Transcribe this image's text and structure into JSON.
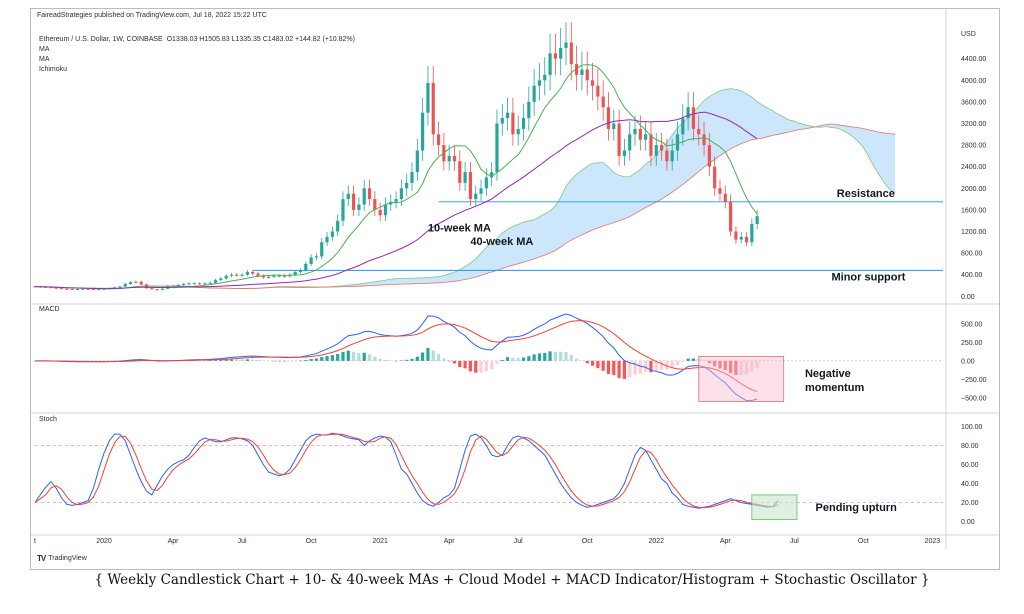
{
  "header": {
    "publisher": "FaireadStrategies published on TradingView.com, Jul 18, 2022 15:22 UTC",
    "symbol": "Ethereum / U.S. Dollar, 1W, COINBASE",
    "ohlc": "O1338.03  H1505.83  L1335.35  C1483.02  +144.82 (+10.82%)",
    "indicators": [
      "MA",
      "MA",
      "Ichimoku"
    ]
  },
  "brand": {
    "name": "TradingView",
    "logo": "TV"
  },
  "caption": "{ Weekly Candlestick Chart + 10- & 40-week MAs + Cloud Model + MACD Indicator/Histogram + Stochastic Oscillator }",
  "colors": {
    "up": "#26a69a",
    "down": "#ef5350",
    "ma10": "#4caf50",
    "ma40": "#9c27b0",
    "cloud": "#bbdefb",
    "macd": "#2962ff",
    "signal": "#f44336"
  },
  "chart_data": [
    {
      "type": "candlestick",
      "panel": "price",
      "currency_label": "USD",
      "yticks": [
        0,
        400,
        800,
        1200,
        1600,
        2000,
        2400,
        2800,
        3200,
        3600,
        4000,
        4400
      ],
      "ytick_labels": [
        "0.00",
        "400.00",
        "800.00",
        "1200.00",
        "1600.00",
        "2000.00",
        "2400.00",
        "2800.00",
        "3200.00",
        "3600.00",
        "4000.00",
        "4400.00"
      ],
      "ylim": [
        -50,
        4950
      ],
      "x_ticks": [
        {
          "t": 0,
          "label": "t"
        },
        {
          "t": 13,
          "label": "2020"
        },
        {
          "t": 26,
          "label": "Apr"
        },
        {
          "t": 39,
          "label": "Jul"
        },
        {
          "t": 52,
          "label": "Oct"
        },
        {
          "t": 65,
          "label": "2021"
        },
        {
          "t": 78,
          "label": "Apr"
        },
        {
          "t": 91,
          "label": "Jul"
        },
        {
          "t": 104,
          "label": "Oct"
        },
        {
          "t": 117,
          "label": "2022"
        },
        {
          "t": 130,
          "label": "Apr"
        },
        {
          "t": 143,
          "label": "Jul"
        },
        {
          "t": 156,
          "label": "Oct"
        },
        {
          "t": 169,
          "label": "2023"
        }
      ],
      "x_range": [
        0,
        171
      ],
      "closes": [
        180,
        175,
        170,
        160,
        150,
        140,
        135,
        130,
        135,
        140,
        135,
        130,
        132,
        140,
        150,
        165,
        180,
        230,
        260,
        270,
        220,
        150,
        130,
        120,
        140,
        190,
        200,
        210,
        230,
        240,
        240,
        230,
        240,
        250,
        300,
        330,
        380,
        400,
        390,
        400,
        450,
        420,
        380,
        350,
        360,
        380,
        380,
        370,
        400,
        450,
        480,
        600,
        720,
        740,
        1000,
        1100,
        1200,
        1400,
        1800,
        1900,
        1600,
        1700,
        2000,
        1800,
        1600,
        1500,
        1700,
        1750,
        1800,
        2000,
        2100,
        2300,
        2700,
        3400,
        3950,
        3000,
        2800,
        2500,
        2600,
        2500,
        2100,
        2300,
        1800,
        1900,
        2000,
        2200,
        2300,
        3200,
        3300,
        3400,
        3000,
        3100,
        3300,
        3600,
        3900,
        4000,
        4100,
        4500,
        4400,
        4600,
        4700,
        4300,
        4100,
        4200,
        4000,
        3900,
        3700,
        3500,
        3100,
        3200,
        2600,
        2700,
        3000,
        3100,
        2900,
        3000,
        2600,
        2800,
        2700,
        2500,
        2700,
        3000,
        3300,
        3500,
        3100,
        3000,
        2800,
        2400,
        2000,
        1900,
        1750,
        1200,
        1050,
        1100,
        1000,
        1338,
        1483
      ],
      "annotations": [
        {
          "text": "Resistance",
          "level": 1750
        },
        {
          "text": "Minor support",
          "level": 480
        },
        {
          "text": "10-week MA"
        },
        {
          "text": "40-week MA"
        }
      ]
    },
    {
      "type": "macd",
      "panel": "macd",
      "title": "MACD",
      "yticks": [
        500,
        250,
        0,
        -250,
        -500
      ],
      "ytick_labels": [
        "500.00",
        "250.00",
        "0.00",
        "−250.00",
        "−500.00"
      ],
      "ylim": [
        -650,
        700
      ],
      "annotation": "Negative momentum"
    },
    {
      "type": "stochastic",
      "panel": "stoch",
      "title": "Stoch",
      "yticks": [
        100,
        80,
        60,
        40,
        20,
        0
      ],
      "ytick_labels": [
        "100.00",
        "80.00",
        "60.00",
        "40.00",
        "20.00",
        "0.00"
      ],
      "ylim": [
        -10,
        110
      ],
      "levels": [
        80,
        20
      ],
      "k": [
        20,
        28,
        36,
        42,
        35,
        25,
        18,
        17,
        18,
        20,
        22,
        35,
        55,
        72,
        85,
        92,
        92,
        85,
        70,
        55,
        42,
        32,
        28,
        38,
        48,
        55,
        60,
        63,
        65,
        70,
        78,
        85,
        88,
        86,
        84,
        84,
        86,
        88,
        88,
        87,
        85,
        80,
        70,
        60,
        52,
        50,
        48,
        50,
        55,
        65,
        75,
        85,
        90,
        92,
        91,
        91,
        93,
        92,
        90,
        88,
        87,
        86,
        80,
        85,
        88,
        90,
        89,
        84,
        70,
        55,
        50,
        40,
        30,
        22,
        18,
        16,
        20,
        25,
        28,
        35,
        55,
        75,
        90,
        92,
        88,
        80,
        70,
        68,
        70,
        80,
        88,
        90,
        88,
        85,
        80,
        75,
        70,
        60,
        50,
        40,
        32,
        25,
        20,
        17,
        15,
        16,
        18,
        20,
        22,
        24,
        30,
        40,
        55,
        70,
        78,
        75,
        65,
        55,
        45,
        40,
        30,
        25,
        18,
        16,
        15,
        14,
        15,
        16,
        18,
        20,
        22,
        24,
        22,
        20,
        19,
        18,
        17,
        16,
        15,
        16,
        22
      ],
      "annotation": "Pending upturn"
    }
  ]
}
